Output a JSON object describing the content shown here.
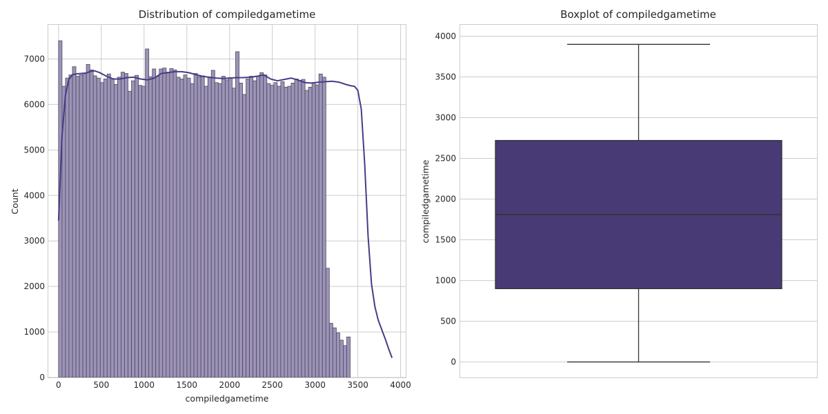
{
  "colors": {
    "bar_fill": "#9d93b8",
    "bar_edge": "#4a4a5a",
    "kde_line": "#473a86",
    "box_fill": "#483a74",
    "box_edge": "#333333",
    "grid": "#cccccc"
  },
  "chart_data": [
    {
      "type": "bar",
      "subtype": "histogram_with_kde",
      "title": "Distribution of compiledgametime",
      "xlabel": "compiledgametime",
      "ylabel": "Count",
      "xlim": [
        -120,
        4060
      ],
      "ylim": [
        0,
        7750
      ],
      "xticks": [
        0,
        500,
        1000,
        1500,
        2000,
        2500,
        3000,
        3500,
        4000
      ],
      "yticks": [
        0,
        1000,
        2000,
        3000,
        4000,
        5000,
        6000,
        7000
      ],
      "grid": true,
      "bin_start": 0,
      "bin_width": 40.6,
      "values": [
        7400,
        6400,
        6580,
        6650,
        6830,
        6620,
        6650,
        6680,
        6880,
        6760,
        6630,
        6580,
        6480,
        6560,
        6670,
        6570,
        6440,
        6600,
        6710,
        6680,
        6290,
        6520,
        6640,
        6420,
        6400,
        7220,
        6610,
        6780,
        6620,
        6780,
        6800,
        6710,
        6790,
        6760,
        6600,
        6560,
        6650,
        6580,
        6460,
        6680,
        6610,
        6630,
        6400,
        6590,
        6750,
        6480,
        6460,
        6620,
        6540,
        6590,
        6360,
        7160,
        6470,
        6220,
        6560,
        6620,
        6520,
        6620,
        6700,
        6650,
        6460,
        6420,
        6480,
        6400,
        6500,
        6380,
        6400,
        6470,
        6560,
        6530,
        6550,
        6310,
        6380,
        6480,
        6430,
        6670,
        6600,
        2400,
        1190,
        1090,
        980,
        820,
        700,
        890
      ],
      "kde": {
        "x": [
          0,
          40,
          80,
          120,
          160,
          200,
          260,
          320,
          380,
          420,
          480,
          560,
          640,
          720,
          800,
          880,
          960,
          1040,
          1120,
          1200,
          1280,
          1360,
          1440,
          1520,
          1600,
          1680,
          1760,
          1840,
          1920,
          2000,
          2080,
          2160,
          2240,
          2320,
          2400,
          2480,
          2560,
          2640,
          2720,
          2800,
          2880,
          2960,
          3040,
          3120,
          3200,
          3280,
          3360,
          3420,
          3460,
          3500,
          3540,
          3580,
          3620,
          3660,
          3700,
          3740,
          3780,
          3820,
          3860,
          3900
        ],
        "y": [
          3450,
          5300,
          6200,
          6550,
          6650,
          6670,
          6680,
          6690,
          6730,
          6740,
          6700,
          6620,
          6560,
          6560,
          6590,
          6600,
          6560,
          6540,
          6580,
          6680,
          6700,
          6720,
          6720,
          6700,
          6660,
          6620,
          6600,
          6580,
          6570,
          6580,
          6590,
          6590,
          6600,
          6620,
          6650,
          6560,
          6520,
          6550,
          6580,
          6540,
          6480,
          6470,
          6490,
          6500,
          6510,
          6490,
          6440,
          6410,
          6400,
          6310,
          5900,
          4700,
          3100,
          2050,
          1550,
          1250,
          1050,
          850,
          630,
          430
        ]
      }
    },
    {
      "type": "box",
      "title": "Boxplot of compiledgametime",
      "xlabel": "",
      "ylabel": "compiledgametime",
      "ylim": [
        -190,
        4140
      ],
      "yticks": [
        0,
        500,
        1000,
        1500,
        2000,
        2500,
        3000,
        3500,
        4000
      ],
      "grid": true,
      "whisker_low": 0,
      "q1": 900,
      "median": 1810,
      "q3": 2720,
      "whisker_high": 3900
    }
  ]
}
